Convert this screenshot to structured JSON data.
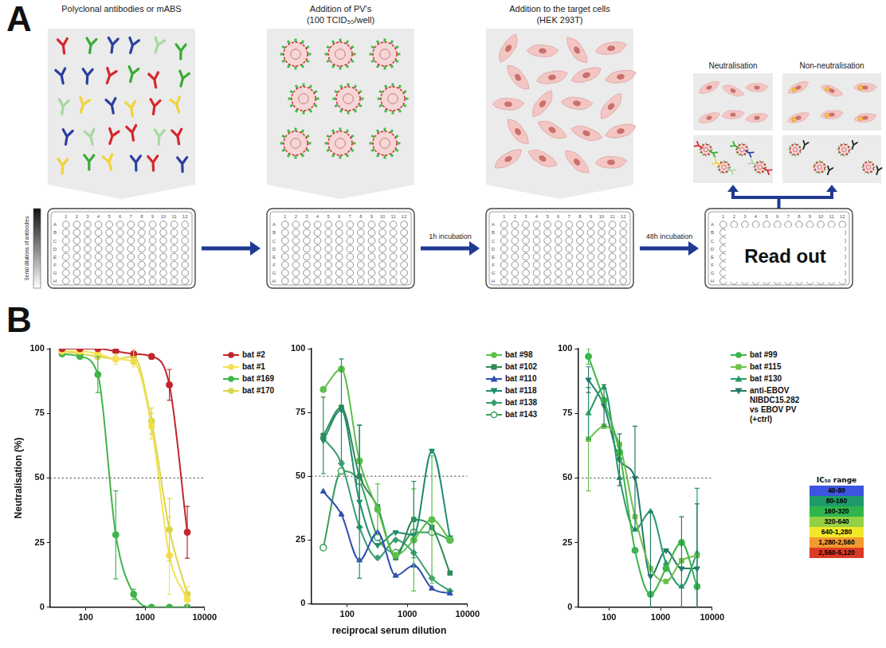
{
  "panel_a": {
    "letter": "A",
    "steps": [
      {
        "title": "Polyclonal antibodies or mABS"
      },
      {
        "title": "Addition of PV's",
        "subtitle": "(100 TCID₅₀/well)"
      },
      {
        "title": "Addition to the target cells",
        "subtitle": "(HEK 293T)"
      }
    ],
    "outcomes": [
      "Neutralisation",
      "Non-neutralisation"
    ],
    "arrow_labels": [
      null,
      "1h incubation",
      "48h incubation"
    ],
    "dilution_label": "Serial dilutions of antibodies",
    "readout": "Read out",
    "plate_rows": [
      "A",
      "B",
      "C",
      "D",
      "E",
      "F",
      "G",
      "H"
    ],
    "plate_columns": [
      1,
      2,
      3,
      4,
      5,
      6,
      7,
      8,
      9,
      10,
      11,
      12
    ]
  },
  "panel_b": {
    "letter": "B",
    "ic50_legend": {
      "title": "IC₅₀ range",
      "entries": [
        {
          "label": "40-80",
          "color": "#3b55e0"
        },
        {
          "label": "80-160",
          "color": "#1f9a6a"
        },
        {
          "label": "160-320",
          "color": "#2fb54c"
        },
        {
          "label": "320-640",
          "color": "#93d044"
        },
        {
          "label": "640-1,280",
          "color": "#f2e82a"
        },
        {
          "label": "1,280-2,560",
          "color": "#f39a2e"
        },
        {
          "label": "2,560-5,120",
          "color": "#dd3a26"
        }
      ]
    }
  },
  "chart_data": [
    {
      "type": "line",
      "y_label": "Neutralisation (%)",
      "log": "x",
      "xlim": [
        25,
        10000
      ],
      "xticks": [
        100,
        1000,
        10000
      ],
      "ylim": [
        0,
        100
      ],
      "yticks": [
        0,
        25,
        50,
        75,
        100
      ],
      "grid": false,
      "legend": "right",
      "threshold": 50,
      "x": [
        40,
        80,
        160,
        320,
        640,
        1280,
        2560,
        5120
      ],
      "series": [
        {
          "name": "bat #2",
          "color": "#c0272d",
          "marker": "circle",
          "values": [
            100,
            100,
            100,
            99,
            98,
            97,
            86,
            29
          ],
          "errors": [
            null,
            null,
            null,
            null,
            null,
            1,
            6,
            10
          ]
        },
        {
          "name": "bat #1",
          "color": "#f5e050",
          "marker": "circle",
          "values": [
            99,
            99,
            98,
            96,
            95,
            70,
            20,
            3
          ],
          "errors": [
            null,
            null,
            null,
            2,
            2,
            5,
            15,
            5
          ]
        },
        {
          "name": "bat #169",
          "color": "#3fb54a",
          "marker": "circle",
          "values": [
            98,
            97,
            90,
            28,
            5,
            0,
            0,
            0
          ],
          "errors": [
            null,
            null,
            7,
            17,
            2,
            null,
            null,
            null
          ]
        },
        {
          "name": "bat #170",
          "color": "#d8d64a",
          "marker": "circle",
          "values": [
            99,
            98,
            97,
            96,
            97,
            72,
            30,
            5
          ],
          "errors": [
            null,
            null,
            null,
            null,
            3,
            5,
            12,
            null
          ]
        }
      ]
    },
    {
      "type": "line",
      "x_label": "reciprocal serum dilution",
      "log": "x",
      "xlim": [
        25,
        10000
      ],
      "xticks": [
        100,
        1000,
        10000
      ],
      "ylim": [
        0,
        100
      ],
      "yticks": [
        0,
        25,
        50,
        75,
        100
      ],
      "grid": false,
      "legend": "right",
      "threshold": 50,
      "x": [
        40,
        80,
        160,
        320,
        640,
        1280,
        2560,
        5120
      ],
      "series": [
        {
          "name": "bat #98",
          "color": "#5cc04a",
          "marker": "circle",
          "values": [
            84,
            92,
            56,
            37,
            19,
            25,
            33,
            25
          ],
          "errors": [
            null,
            null,
            null,
            10,
            null,
            20,
            25,
            null
          ]
        },
        {
          "name": "bat #102",
          "color": "#2e8b57",
          "marker": "square",
          "values": [
            66,
            77,
            50,
            38,
            18,
            33,
            30,
            12
          ],
          "errors": [
            15,
            null,
            20,
            null,
            null,
            15,
            null,
            null
          ]
        },
        {
          "name": "bat #110",
          "color": "#2f4fb0",
          "marker": "triangle",
          "values": [
            44,
            35,
            17,
            28,
            11,
            15,
            6,
            4
          ],
          "errors": [
            null,
            null,
            null,
            null,
            null,
            null,
            null,
            null
          ]
        },
        {
          "name": "bat #118",
          "color": "#1e8c6e",
          "marker": "triangle-down",
          "values": [
            64,
            76,
            40,
            23,
            28,
            27,
            60,
            26
          ],
          "errors": [
            null,
            20,
            30,
            null,
            null,
            null,
            null,
            null
          ]
        },
        {
          "name": "bat #138",
          "color": "#3a9e6e",
          "marker": "diamond",
          "values": [
            65,
            55,
            30,
            18,
            25,
            20,
            10,
            5
          ],
          "errors": [
            null,
            null,
            null,
            null,
            null,
            null,
            null,
            null
          ]
        },
        {
          "name": "bat #143",
          "color": "#3aa05a",
          "marker": "circle-open",
          "values": [
            22,
            52,
            48,
            26,
            20,
            28,
            28,
            25
          ],
          "errors": [
            null,
            null,
            null,
            null,
            null,
            null,
            null,
            null
          ]
        }
      ]
    },
    {
      "type": "line",
      "log": "x",
      "xlim": [
        25,
        10000
      ],
      "xticks": [
        100,
        1000,
        10000
      ],
      "ylim": [
        0,
        100
      ],
      "yticks": [
        0,
        25,
        50,
        75,
        100
      ],
      "grid": false,
      "legend": "right",
      "threshold": 50,
      "x": [
        40,
        80,
        160,
        320,
        640,
        1280,
        2560,
        5120
      ],
      "series": [
        {
          "name": "bat #99",
          "color": "#3cb54a",
          "marker": "circle",
          "values": [
            97,
            80,
            60,
            22,
            5,
            15,
            25,
            8
          ],
          "errors": [
            3,
            null,
            null,
            null,
            null,
            null,
            null,
            null
          ]
        },
        {
          "name": "bat #115",
          "color": "#6cc04a",
          "marker": "square",
          "values": [
            65,
            70,
            63,
            35,
            15,
            10,
            18,
            20
          ],
          "errors": [
            20,
            null,
            null,
            null,
            null,
            null,
            null,
            null
          ]
        },
        {
          "name": "bat #130",
          "color": "#2a9a6a",
          "marker": "triangle",
          "values": [
            75,
            85,
            50,
            30,
            37,
            17,
            8,
            21
          ],
          "errors": [
            10,
            null,
            null,
            null,
            null,
            null,
            null,
            25
          ]
        },
        {
          "name": "anti-EBOV NIBDC15.282 vs EBOV PV (+ctrl)",
          "color": "#237a68",
          "marker": "triangle-down",
          "values": [
            88,
            78,
            57,
            50,
            12,
            22,
            15,
            15
          ],
          "errors": [
            5,
            8,
            10,
            20,
            25,
            null,
            20,
            25
          ]
        }
      ]
    }
  ]
}
